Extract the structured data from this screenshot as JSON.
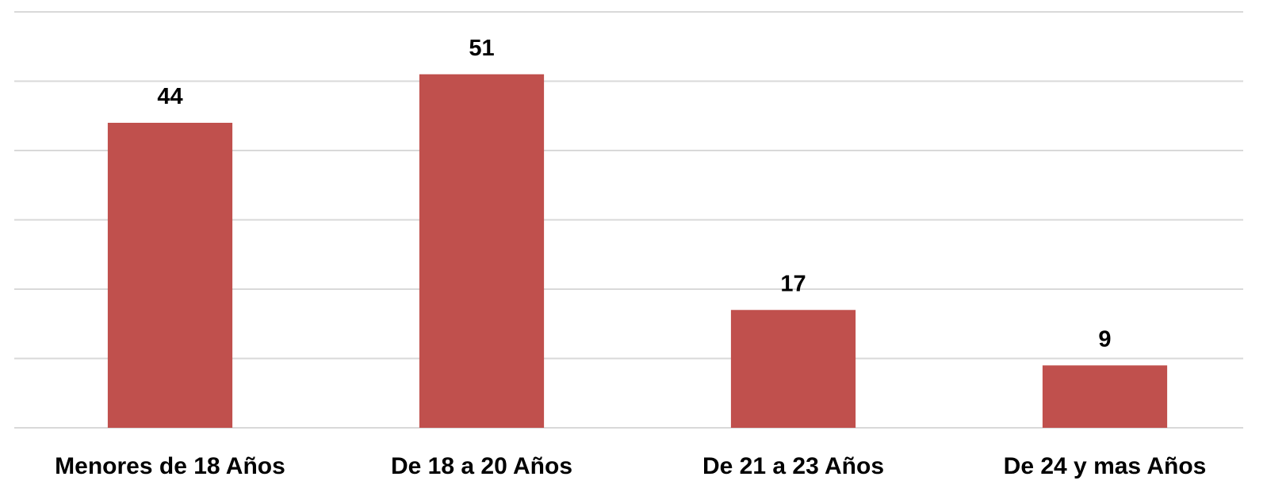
{
  "chart_data": {
    "type": "bar",
    "categories": [
      "Menores de 18 Años",
      "De 18 a 20 Años",
      "De 21 a 23 Años",
      "De 24 y mas Años"
    ],
    "values": [
      44,
      51,
      17,
      9
    ],
    "color": "#c0504d",
    "ylim": [
      0,
      60
    ],
    "yticks": [
      0,
      10,
      20,
      30,
      40,
      50,
      60
    ],
    "grid": true
  }
}
